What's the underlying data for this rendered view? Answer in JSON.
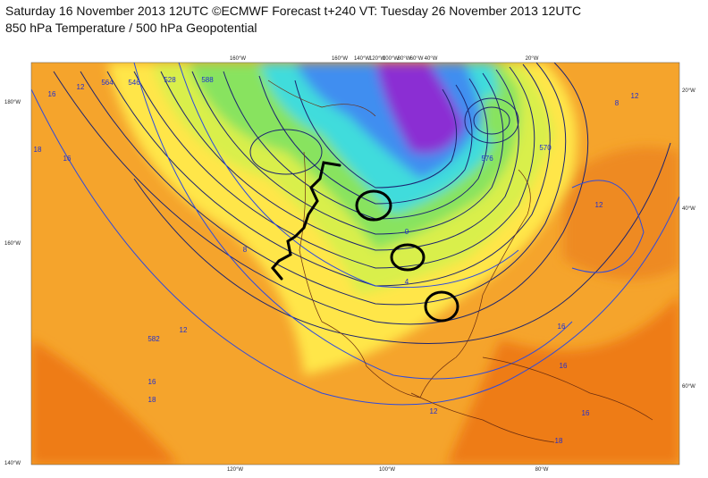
{
  "header": {
    "line1": "Saturday 16 November 2013 12UTC ©ECMWF Forecast t+240 VT: Tuesday 26 November 2013 12UTC",
    "line2": "850 hPa Temperature / 500 hPa Geopotential"
  },
  "graticule_labels": [
    "160°W",
    "160°W",
    "140°W",
    "120°W",
    "100°W",
    "80°W",
    "60°W",
    "40°W",
    "20°W",
    "180°W",
    "160°W",
    "140°W",
    "20°W",
    "40°W",
    "60°W",
    "120°W",
    "100°W",
    "80°W"
  ],
  "contour_labels": [
    "12",
    "16",
    "18",
    "16",
    "12",
    "582",
    "588",
    "564",
    "546",
    "528",
    "0",
    "4",
    "8",
    "12",
    "16",
    "16",
    "18",
    "12",
    "16",
    "16",
    "18",
    "8",
    "12",
    "576",
    "570"
  ]
}
